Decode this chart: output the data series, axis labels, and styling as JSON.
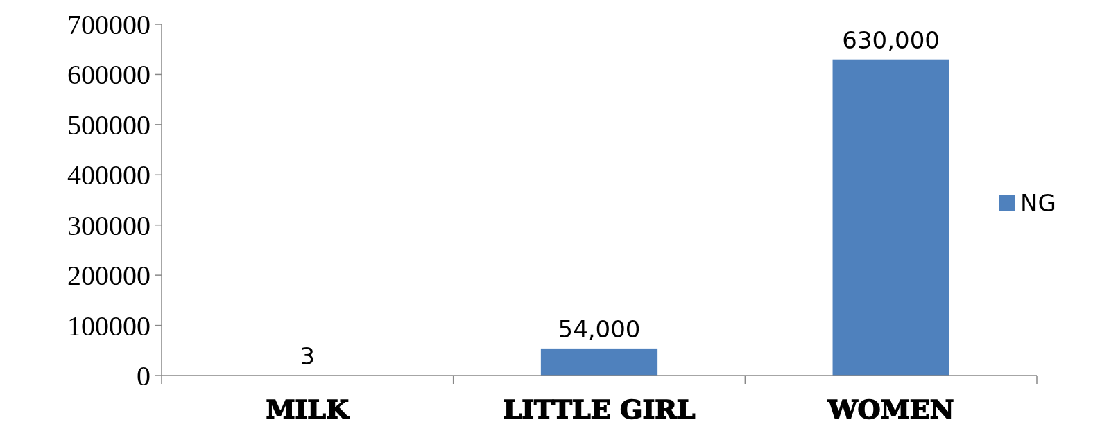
{
  "chart_data": {
    "type": "bar",
    "categories": [
      "MILK",
      "LITTLE GIRL",
      "WOMEN"
    ],
    "series": [
      {
        "name": "NG",
        "color": "#4f81bd",
        "values": [
          3,
          54000,
          630000
        ],
        "value_labels": [
          "3",
          "54,000",
          "630,000"
        ]
      }
    ],
    "ylim": [
      0,
      700000
    ],
    "yticks": [
      0,
      100000,
      200000,
      300000,
      400000,
      500000,
      600000,
      700000
    ],
    "grid": false,
    "legend": "right"
  }
}
